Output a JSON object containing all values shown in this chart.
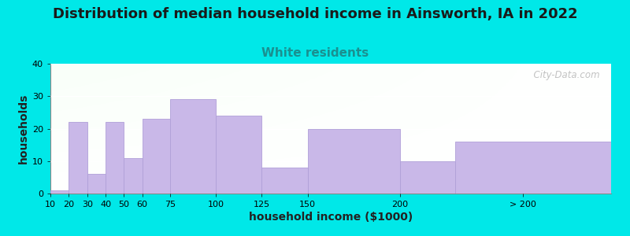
{
  "title": "Distribution of median household income in Ainsworth, IA in 2022",
  "subtitle": "White residents",
  "xlabel": "household income ($1000)",
  "ylabel": "households",
  "bar_labels": [
    "10",
    "20",
    "30",
    "40",
    "50",
    "60",
    "75",
    "100",
    "125",
    "150",
    "200",
    "> 200"
  ],
  "bar_values": [
    1,
    22,
    6,
    22,
    11,
    23,
    29,
    24,
    8,
    20,
    10,
    16
  ],
  "bar_lefts": [
    10,
    20,
    30,
    40,
    50,
    60,
    75,
    100,
    125,
    150,
    200,
    230
  ],
  "bar_widths": [
    10,
    10,
    10,
    10,
    10,
    15,
    25,
    25,
    25,
    50,
    30,
    85
  ],
  "bar_color": "#c9b8e8",
  "bar_edgecolor": "#b0a0d8",
  "ylim": [
    0,
    40
  ],
  "yticks": [
    0,
    10,
    20,
    30,
    40
  ],
  "xlim": [
    10,
    315
  ],
  "xtick_positions": [
    10,
    20,
    30,
    40,
    50,
    60,
    75,
    100,
    125,
    150,
    200,
    267
  ],
  "background_outer": "#00e8e8",
  "title_fontsize": 13,
  "subtitle_fontsize": 11,
  "subtitle_color": "#1a9090",
  "axis_label_fontsize": 10,
  "tick_fontsize": 8,
  "watermark_text": "  City-Data.com",
  "watermark_color": "#b8b8b8"
}
